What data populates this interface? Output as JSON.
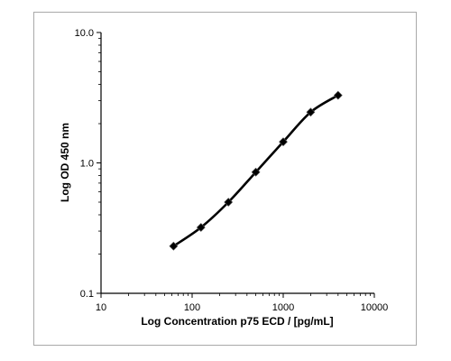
{
  "chart_data": {
    "type": "line",
    "title": "",
    "xlabel": "Log Concentration p75 ECD / [pg/mL]",
    "ylabel": "Log OD 450 nm",
    "xscale": "log",
    "yscale": "log",
    "xlim": [
      10,
      10000
    ],
    "ylim": [
      0.1,
      10.0
    ],
    "x_ticks": [
      10,
      100,
      1000,
      10000
    ],
    "x_tick_labels": [
      "10",
      "100",
      "1000",
      "10000"
    ],
    "y_ticks": [
      0.1,
      1.0,
      10.0
    ],
    "y_tick_labels": [
      "0.1",
      "1.0",
      "10.0"
    ],
    "grid": false,
    "legend": "none",
    "series": [
      {
        "x": [
          62.5,
          125,
          250,
          500,
          1000,
          2000,
          4000
        ],
        "y": [
          0.23,
          0.32,
          0.5,
          0.85,
          1.45,
          2.45,
          3.3
        ],
        "marker": "diamond",
        "line_color": "#000000",
        "marker_color": "#000000"
      }
    ]
  }
}
